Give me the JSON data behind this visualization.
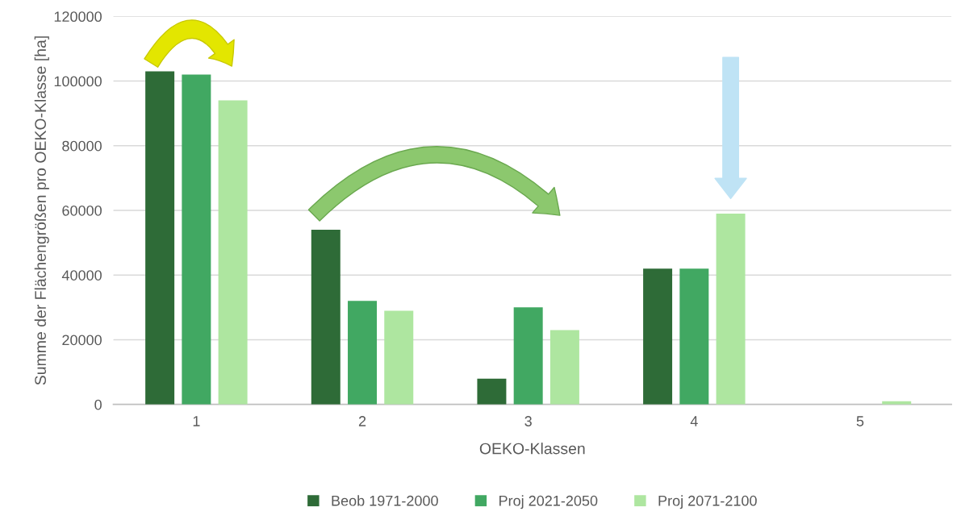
{
  "chart_data": {
    "type": "bar",
    "xlabel": "OEKO-Klassen",
    "ylabel": "Summe der Flächengrößen pro OEKO-Klasse [ha]",
    "categories": [
      "1",
      "2",
      "3",
      "4",
      "5"
    ],
    "series": [
      {
        "name": "Beob 1971-2000",
        "color": "#2e6b37",
        "values": [
          103000,
          54000,
          8000,
          42000,
          0
        ]
      },
      {
        "name": "Proj 2021-2050",
        "color": "#41a862",
        "values": [
          102000,
          32000,
          30000,
          42000,
          0
        ]
      },
      {
        "name": "Proj 2071-2100",
        "color": "#aee6a0",
        "values": [
          94000,
          29000,
          23000,
          59000,
          1000
        ]
      }
    ],
    "ylim": [
      0,
      120000
    ],
    "yticks": [
      0,
      20000,
      40000,
      60000,
      80000,
      100000,
      120000
    ],
    "grid": "y",
    "legend": "bottom"
  }
}
